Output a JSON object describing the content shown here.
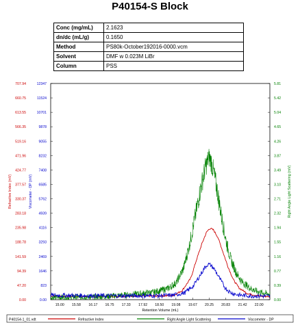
{
  "header": {
    "title": "P40154-S Block"
  },
  "info_table": [
    {
      "label": "Conc (mg/mL)",
      "value": "2.1623"
    },
    {
      "label": "dn/dc (mL/g)",
      "value": "0.1650"
    },
    {
      "label": "Method",
      "value": "PS80k-October192016-0000.vcm"
    },
    {
      "label": "Solvent",
      "value": "DMF w 0.023M LiBr"
    },
    {
      "label": "Column",
      "value": "PSS"
    }
  ],
  "footer": {
    "filename": "P40154-1_01.vdt"
  },
  "chart_data": {
    "type": "line",
    "xlabel": "Retention Volume (mL)",
    "x_ticks": [
      "15.00",
      "15.58",
      "16.17",
      "16.75",
      "17.33",
      "17.92",
      "18.50",
      "19.08",
      "19.67",
      "20.25",
      "20.83",
      "21.42",
      "22.00"
    ],
    "xlim": [
      14.68,
      22.38
    ],
    "y_axes": [
      {
        "label": "Refractive Index (mV)",
        "color": "#cc0000",
        "ticks": [
          "0.00",
          "47.20",
          "94.39",
          "141.59",
          "188.78",
          "235.98",
          "283.18",
          "330.37",
          "377.57",
          "424.77",
          "471.96",
          "519.16",
          "566.35",
          "613.55",
          "660.75",
          "707.94"
        ],
        "range": [
          0,
          707.94
        ]
      },
      {
        "label": "Viscometer - DP (mV)",
        "color": "#0000cc",
        "ticks": [
          "0.00",
          "823",
          "1646",
          "2469",
          "3293",
          "4116",
          "4939",
          "5762",
          "6585",
          "7408",
          "8232",
          "9055",
          "9878",
          "10701",
          "11524",
          "12347"
        ],
        "range": [
          0,
          12347
        ]
      },
      {
        "label": "Right Angle Light Scattering (mV)",
        "color": "#008000",
        "ticks": [
          "0.00",
          "0.39",
          "0.77",
          "1.16",
          "1.55",
          "1.94",
          "2.32",
          "2.71",
          "3.10",
          "3.49",
          "3.87",
          "4.26",
          "4.65",
          "5.04",
          "5.42",
          "5.81"
        ],
        "range": [
          0,
          5.81
        ]
      }
    ],
    "series": [
      {
        "name": "Refractive Index",
        "color": "#cc0000",
        "x": [
          14.7,
          16.0,
          17.5,
          18.5,
          19.0,
          19.3,
          19.6,
          19.8,
          20.0,
          20.15,
          20.25,
          20.3,
          20.4,
          20.55,
          20.7,
          20.9,
          21.1,
          21.3,
          21.6,
          22.0,
          22.38
        ],
        "y": [
          12,
          10,
          12,
          12,
          14,
          30,
          70,
          130,
          185,
          220,
          232,
          233,
          228,
          205,
          165,
          110,
          65,
          38,
          20,
          12,
          10
        ]
      },
      {
        "name": "Right Angle Light Scattering",
        "color": "#008000",
        "x": [
          14.7,
          16.5,
          17.5,
          18.3,
          18.8,
          19.1,
          19.35,
          19.55,
          19.75,
          19.95,
          20.1,
          20.2,
          20.25,
          20.3,
          20.4,
          20.55,
          20.7,
          20.85,
          21.0,
          21.2,
          21.4,
          21.7,
          22.0,
          22.38
        ],
        "y": [
          0.06,
          0.08,
          0.14,
          0.2,
          0.3,
          0.46,
          0.85,
          1.45,
          2.2,
          3.0,
          3.5,
          3.75,
          3.82,
          3.75,
          3.45,
          2.85,
          2.15,
          1.55,
          1.1,
          0.72,
          0.48,
          0.3,
          0.2,
          0.15
        ]
      },
      {
        "name": "Viscometer - DP",
        "color": "#0000cc",
        "x": [
          14.7,
          17.0,
          18.5,
          19.0,
          19.4,
          19.7,
          19.95,
          20.1,
          20.2,
          20.3,
          20.45,
          20.6,
          20.8,
          21.0,
          21.3,
          21.7,
          22.38
        ],
        "y": [
          250,
          220,
          230,
          260,
          400,
          800,
          1450,
          1850,
          2020,
          1980,
          1700,
          1250,
          700,
          400,
          260,
          220,
          200
        ]
      }
    ]
  }
}
